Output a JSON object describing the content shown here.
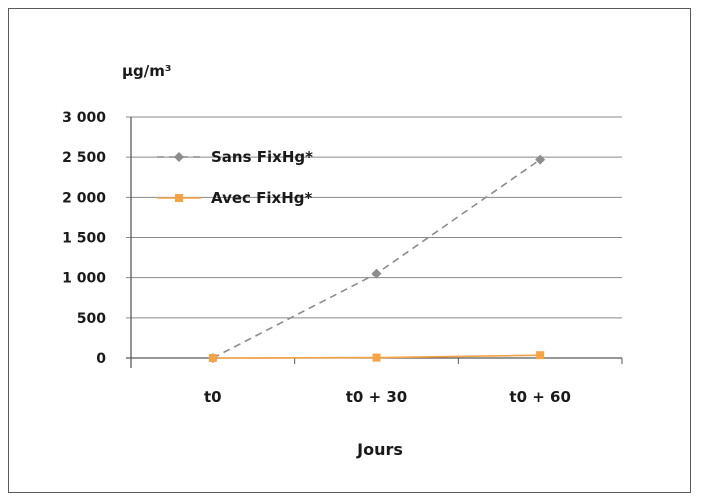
{
  "chart_data": {
    "type": "line",
    "ylabel": "µg/m³",
    "xlabel": "Jours",
    "categories": [
      "t0",
      "t0 + 30",
      "t0 + 60"
    ],
    "ylim": [
      0,
      3000
    ],
    "yticks": [
      0,
      500,
      1000,
      1500,
      2000,
      2500,
      3000
    ],
    "ytick_labels": [
      "0",
      "500",
      "1 000",
      "1 500",
      "2 000",
      "2 500",
      "3 000"
    ],
    "grid": "horizontal",
    "legend_position": "top-left",
    "series": [
      {
        "name": "Sans FixHg*",
        "values": [
          0,
          1050,
          2470
        ],
        "color": "#8c8c8c",
        "marker": "diamond",
        "dash": true
      },
      {
        "name": "Avec FixHg*",
        "values": [
          0,
          5,
          35
        ],
        "color": "#f5a445",
        "marker": "square",
        "dash": false
      }
    ]
  }
}
